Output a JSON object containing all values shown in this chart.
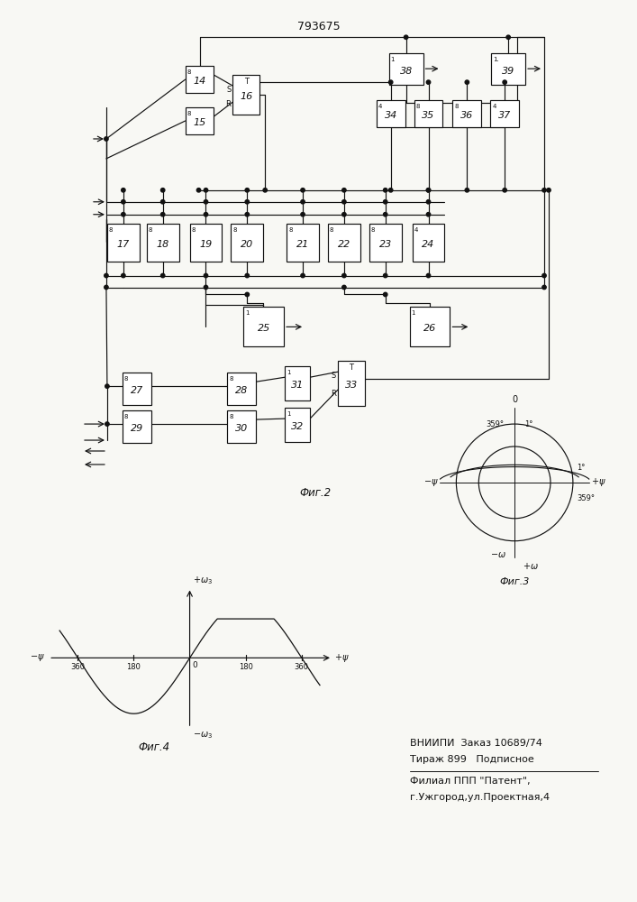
{
  "title": "793675",
  "bg_color": "#f8f8f4",
  "line_color": "#111111",
  "fig_width": 7.07,
  "fig_height": 10.0,
  "footer_line1": "ВНИИПИ  Заказ 10689/74",
  "footer_line2": "Тираж 899   Подписное",
  "footer_line3": "Филиал ППП \"Патент\",",
  "footer_line4": "г.Ужгород,ул.Проектная,4"
}
